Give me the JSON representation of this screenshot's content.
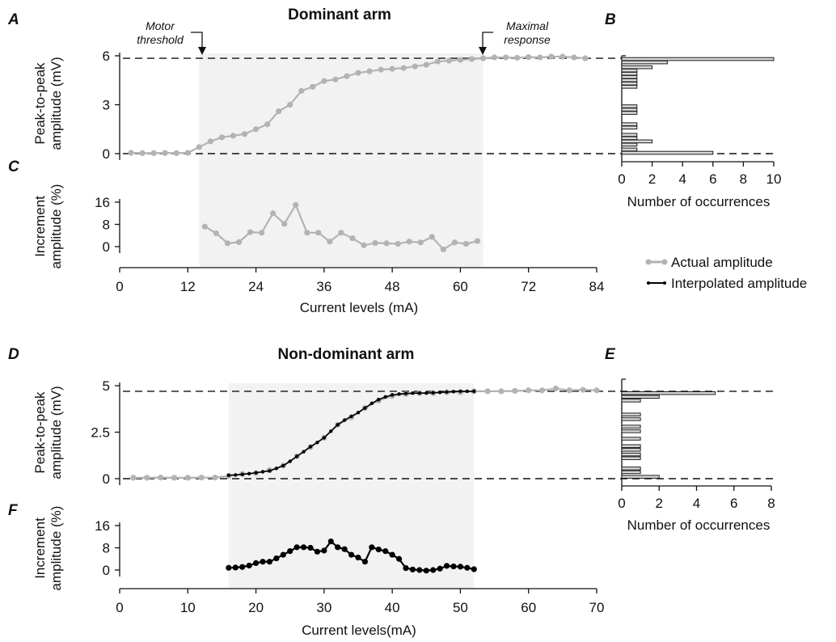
{
  "colors": {
    "actual": "#b3b3b3",
    "interpolated": "#000000",
    "shade": "#f2f2f2",
    "bar_fill": "#d9d9d9",
    "bar_stroke": "#1a1a1a"
  },
  "legend": {
    "actual_label": "Actual amplitude",
    "interpolated_label": "Interpolated amplitude"
  },
  "chart_data": [
    {
      "panel": "A",
      "type": "line",
      "title": "Dominant arm",
      "ylabel": "Peak-to-peak amplitude (mV)",
      "yticks": [
        0,
        3,
        6
      ],
      "ylim": [
        -0.15,
        6.3
      ],
      "xlim": [
        0,
        84
      ],
      "shaded_range": [
        14,
        64
      ],
      "reference_lines": [
        0,
        5.85
      ],
      "annotations": [
        {
          "text": "Motor threshold",
          "x": 14
        },
        {
          "text": "Maximal response",
          "x": 64
        }
      ],
      "series": [
        {
          "name": "Actual amplitude",
          "x": [
            2,
            4,
            6,
            8,
            10,
            12,
            14,
            16,
            18,
            20,
            22,
            24,
            26,
            28,
            30,
            32,
            34,
            36,
            38,
            40,
            42,
            44,
            46,
            48,
            50,
            52,
            54,
            56,
            58,
            60,
            62,
            64,
            66,
            68,
            70,
            72,
            74,
            76,
            78,
            80,
            82
          ],
          "y": [
            0.05,
            0.03,
            0.03,
            0.04,
            0.03,
            0.05,
            0.4,
            0.75,
            1.0,
            1.1,
            1.2,
            1.5,
            1.8,
            2.6,
            3.0,
            3.85,
            4.1,
            4.45,
            4.55,
            4.75,
            4.95,
            5.05,
            5.15,
            5.2,
            5.25,
            5.35,
            5.45,
            5.65,
            5.7,
            5.75,
            5.8,
            5.85,
            5.9,
            5.9,
            5.88,
            5.92,
            5.9,
            5.95,
            5.95,
            5.9,
            5.85
          ]
        }
      ]
    },
    {
      "panel": "B",
      "type": "bar",
      "orientation": "horizontal",
      "xlabel": "Number of occurrences",
      "xticks": [
        0,
        2,
        4,
        6,
        8,
        10
      ],
      "xlim": [
        0,
        10
      ],
      "ylim": [
        -0.15,
        6.3
      ],
      "bin_width_mV": 0.18,
      "bins_mV": [
        0.05,
        0.25,
        0.55,
        0.75,
        0.95,
        1.15,
        1.6,
        1.8,
        2.5,
        2.7,
        2.9,
        4.1,
        4.3,
        4.5,
        4.7,
        4.9,
        5.1,
        5.3,
        5.6,
        5.8
      ],
      "values": [
        6,
        1,
        1,
        2,
        1,
        1,
        1,
        1,
        1,
        1,
        1,
        1,
        1,
        1,
        1,
        1,
        1,
        2,
        3,
        10
      ]
    },
    {
      "panel": "C",
      "type": "line",
      "ylabel": "Increment amplitude (%)",
      "xlabel": "Current levels (mA)",
      "yticks": [
        0,
        8,
        16
      ],
      "xticks": [
        0,
        12,
        24,
        36,
        48,
        60,
        72,
        84
      ],
      "ylim": [
        -2,
        17
      ],
      "xlim": [
        0,
        84
      ],
      "series": [
        {
          "name": "Actual amplitude",
          "x": [
            15,
            17,
            19,
            21,
            23,
            25,
            27,
            29,
            31,
            33,
            35,
            37,
            39,
            41,
            43,
            45,
            47,
            49,
            51,
            53,
            55,
            57,
            59,
            61,
            63
          ],
          "y": [
            7.2,
            4.8,
            1.2,
            1.6,
            5.2,
            5.0,
            12.0,
            8.2,
            15.0,
            5.0,
            5.0,
            1.8,
            5.0,
            3.0,
            0.5,
            1.3,
            1.2,
            1.0,
            1.8,
            1.5,
            3.5,
            -1.0,
            1.5,
            1.0,
            2.0
          ]
        }
      ]
    },
    {
      "panel": "D",
      "type": "line",
      "title": "Non-dominant arm",
      "ylabel": "Peak-to-peak amplitude (mV)",
      "yticks": [
        0,
        2.5,
        5
      ],
      "ylim": [
        -0.15,
        5.2
      ],
      "xlim": [
        0,
        70
      ],
      "shaded_range": [
        16,
        52
      ],
      "reference_lines": [
        0,
        4.7
      ],
      "series": [
        {
          "name": "Actual amplitude",
          "x": [
            2,
            4,
            6,
            8,
            10,
            12,
            14,
            16,
            18,
            20,
            22,
            24,
            26,
            28,
            30,
            32,
            34,
            36,
            38,
            40,
            42,
            44,
            46,
            48,
            50,
            52,
            54,
            56,
            58,
            60,
            62,
            64,
            66,
            68,
            70
          ],
          "y": [
            0.05,
            0.05,
            0.06,
            0.05,
            0.05,
            0.06,
            0.06,
            0.15,
            0.25,
            0.3,
            0.45,
            0.7,
            1.2,
            1.7,
            2.2,
            2.9,
            3.3,
            3.8,
            4.2,
            4.45,
            4.55,
            4.6,
            4.6,
            4.65,
            4.65,
            4.7,
            4.7,
            4.7,
            4.72,
            4.75,
            4.75,
            4.85,
            4.75,
            4.78,
            4.75
          ]
        },
        {
          "name": "Interpolated amplitude",
          "x": [
            16,
            17,
            18,
            19,
            20,
            21,
            22,
            23,
            24,
            25,
            26,
            27,
            28,
            29,
            30,
            31,
            32,
            33,
            34,
            35,
            36,
            37,
            38,
            39,
            40,
            41,
            42,
            43,
            44,
            45,
            46,
            47,
            48,
            49,
            50,
            51,
            52
          ],
          "y": [
            0.18,
            0.2,
            0.23,
            0.27,
            0.32,
            0.37,
            0.42,
            0.55,
            0.7,
            0.93,
            1.2,
            1.45,
            1.72,
            1.95,
            2.2,
            2.55,
            2.9,
            3.15,
            3.35,
            3.55,
            3.8,
            4.05,
            4.25,
            4.4,
            4.5,
            4.55,
            4.58,
            4.6,
            4.6,
            4.6,
            4.62,
            4.64,
            4.66,
            4.68,
            4.7,
            4.7,
            4.7
          ]
        }
      ]
    },
    {
      "panel": "E",
      "type": "bar",
      "orientation": "horizontal",
      "xlabel": "Number of occurrences",
      "xticks": [
        0,
        2,
        4,
        6,
        8
      ],
      "xlim": [
        0,
        8
      ],
      "ylim": [
        -0.15,
        5.2
      ],
      "bin_width_mV": 0.15,
      "bins_mV": [
        0.1,
        0.35,
        0.55,
        1.1,
        1.3,
        1.55,
        1.75,
        2.15,
        2.55,
        2.8,
        3.2,
        3.45,
        4.2,
        4.4,
        4.6
      ],
      "values": [
        2,
        1,
        1,
        1,
        1,
        1,
        1,
        1,
        1,
        1,
        1,
        1,
        1,
        2,
        5
      ]
    },
    {
      "panel": "F",
      "type": "line",
      "ylabel": "Increment amplitude (%)",
      "xlabel": "Current levels(mA)",
      "yticks": [
        0,
        8,
        16
      ],
      "xticks": [
        0,
        10,
        20,
        30,
        40,
        50,
        60,
        70
      ],
      "ylim": [
        -2,
        17
      ],
      "xlim": [
        0,
        70
      ],
      "series": [
        {
          "name": "Interpolated amplitude",
          "x": [
            16,
            17,
            18,
            19,
            20,
            21,
            22,
            23,
            24,
            25,
            26,
            27,
            28,
            29,
            30,
            31,
            32,
            33,
            34,
            35,
            36,
            37,
            38,
            39,
            40,
            41,
            42,
            43,
            44,
            45,
            46,
            47,
            48,
            49,
            50,
            51,
            52
          ],
          "y": [
            0.8,
            0.9,
            1.1,
            1.6,
            2.5,
            3.0,
            3.0,
            4.2,
            5.5,
            6.8,
            8.2,
            8.2,
            8.0,
            6.6,
            7.0,
            10.3,
            8.2,
            7.5,
            5.5,
            4.5,
            3.0,
            8.2,
            7.4,
            6.8,
            5.5,
            4.0,
            0.7,
            0.2,
            0.0,
            -0.2,
            0.0,
            0.5,
            1.5,
            1.3,
            1.2,
            0.8,
            0.3
          ]
        }
      ]
    }
  ]
}
